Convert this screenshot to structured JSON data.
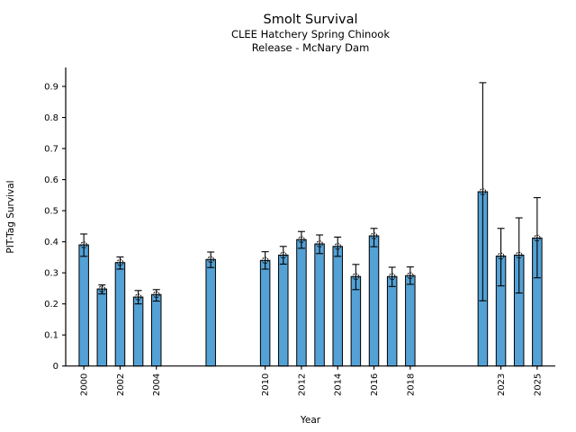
{
  "page": {
    "background": "#ffffff"
  },
  "chart_data": {
    "type": "bar",
    "title": "Smolt Survival",
    "subtitle": [
      "CLEE Hatchery Spring Chinook",
      "Release - McNary Dam"
    ],
    "xlabel": "Year",
    "ylabel": "PIT-Tag Survival",
    "xlim": [
      1999,
      2026
    ],
    "ylim": [
      0,
      0.96
    ],
    "grid": false,
    "legend": null,
    "spines": [
      "left",
      "bottom"
    ],
    "ytick_values": [
      0,
      0.1,
      0.2,
      0.3,
      0.4,
      0.5,
      0.6,
      0.7,
      0.8,
      0.9
    ],
    "ytick_labels": [
      "0",
      "0.1",
      "0.2",
      "0.3",
      "0.4",
      "0.5",
      "0.6",
      "0.7",
      "0.8",
      "0.9"
    ],
    "xtick_values": [
      2000,
      2002,
      2004,
      2010,
      2012,
      2014,
      2016,
      2018,
      2023,
      2025
    ],
    "xtick_labels": [
      "2000",
      "2002",
      "2004",
      "2010",
      "2012",
      "2014",
      "2016",
      "2018",
      "2023",
      "2025"
    ],
    "xtick_label_rotation": 90,
    "bar_color": "#54a1d5",
    "bar_edge_color": "#000000",
    "error_bar_color": "#000000",
    "marker": "open-circle",
    "series": [
      {
        "name": "PIT-Tag Survival",
        "points": [
          {
            "year": 2000,
            "value": 0.39,
            "err_low": 0.353,
            "err_high": 0.425
          },
          {
            "year": 2001,
            "value": 0.248,
            "err_low": 0.232,
            "err_high": 0.261
          },
          {
            "year": 2002,
            "value": 0.333,
            "err_low": 0.312,
            "err_high": 0.351
          },
          {
            "year": 2003,
            "value": 0.222,
            "err_low": 0.2,
            "err_high": 0.243
          },
          {
            "year": 2004,
            "value": 0.23,
            "err_low": 0.209,
            "err_high": 0.246
          },
          {
            "year": 2007,
            "value": 0.343,
            "err_low": 0.317,
            "err_high": 0.367
          },
          {
            "year": 2010,
            "value": 0.34,
            "err_low": 0.312,
            "err_high": 0.368
          },
          {
            "year": 2011,
            "value": 0.357,
            "err_low": 0.328,
            "err_high": 0.385
          },
          {
            "year": 2012,
            "value": 0.407,
            "err_low": 0.379,
            "err_high": 0.433
          },
          {
            "year": 2013,
            "value": 0.393,
            "err_low": 0.362,
            "err_high": 0.422
          },
          {
            "year": 2014,
            "value": 0.385,
            "err_low": 0.353,
            "err_high": 0.415
          },
          {
            "year": 2015,
            "value": 0.288,
            "err_low": 0.246,
            "err_high": 0.327
          },
          {
            "year": 2016,
            "value": 0.419,
            "err_low": 0.384,
            "err_high": 0.443
          },
          {
            "year": 2017,
            "value": 0.288,
            "err_low": 0.256,
            "err_high": 0.318
          },
          {
            "year": 2018,
            "value": 0.291,
            "err_low": 0.263,
            "err_high": 0.319
          },
          {
            "year": 2022,
            "value": 0.561,
            "err_low": 0.21,
            "err_high": 0.912
          },
          {
            "year": 2023,
            "value": 0.354,
            "err_low": 0.258,
            "err_high": 0.443
          },
          {
            "year": 2024,
            "value": 0.357,
            "err_low": 0.235,
            "err_high": 0.477
          },
          {
            "year": 2025,
            "value": 0.412,
            "err_low": 0.284,
            "err_high": 0.542
          }
        ]
      }
    ]
  }
}
